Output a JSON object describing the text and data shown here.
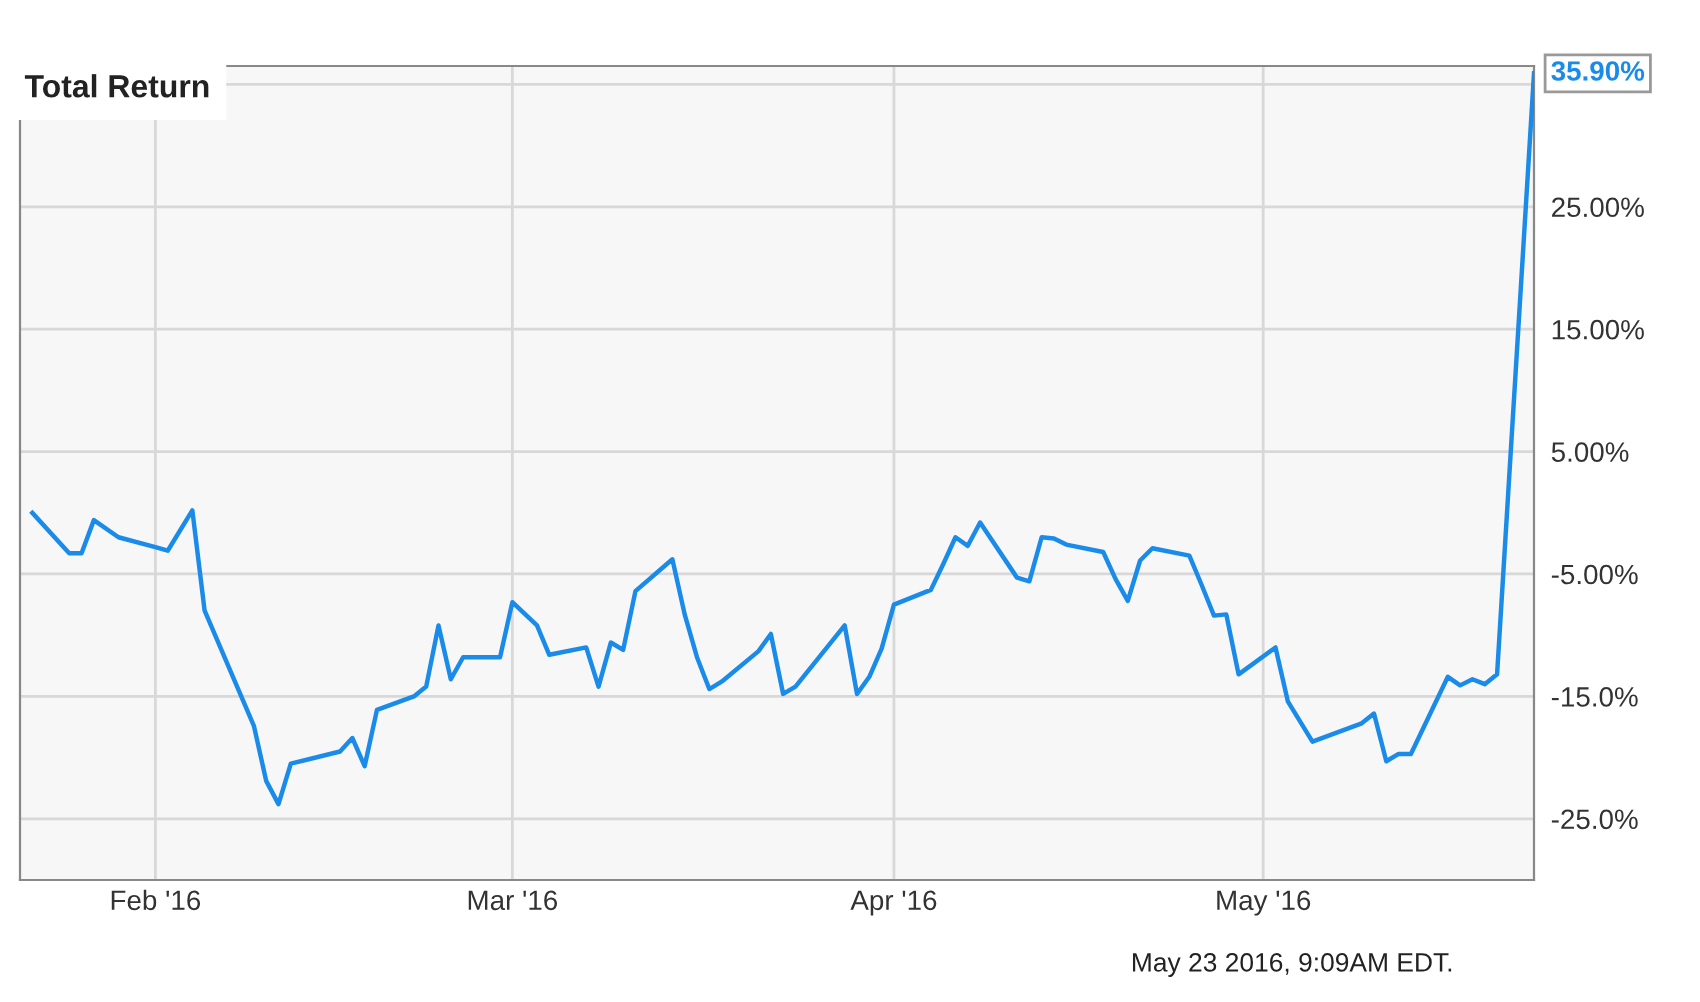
{
  "chart_data": {
    "type": "line",
    "title": "Total Return",
    "x": [
      "2016-01-22",
      "2016-01-25",
      "2016-01-26",
      "2016-01-27",
      "2016-01-29",
      "2016-02-01",
      "2016-02-02",
      "2016-02-04",
      "2016-02-05",
      "2016-02-09",
      "2016-02-10",
      "2016-02-11",
      "2016-02-12",
      "2016-02-16",
      "2016-02-17",
      "2016-02-18",
      "2016-02-19",
      "2016-02-22",
      "2016-02-23",
      "2016-02-24",
      "2016-02-25",
      "2016-02-26",
      "2016-02-29",
      "2016-03-01",
      "2016-03-03",
      "2016-03-04",
      "2016-03-07",
      "2016-03-08",
      "2016-03-09",
      "2016-03-10",
      "2016-03-11",
      "2016-03-14",
      "2016-03-15",
      "2016-03-16",
      "2016-03-17",
      "2016-03-18",
      "2016-03-21",
      "2016-03-22",
      "2016-03-23",
      "2016-03-24",
      "2016-03-28",
      "2016-03-29",
      "2016-03-30",
      "2016-03-31",
      "2016-04-01",
      "2016-04-04",
      "2016-04-05",
      "2016-04-06",
      "2016-04-07",
      "2016-04-08",
      "2016-04-11",
      "2016-04-12",
      "2016-04-13",
      "2016-04-14",
      "2016-04-15",
      "2016-04-18",
      "2016-04-19",
      "2016-04-20",
      "2016-04-21",
      "2016-04-22",
      "2016-04-25",
      "2016-04-26",
      "2016-04-27",
      "2016-04-28",
      "2016-04-29",
      "2016-05-02",
      "2016-05-03",
      "2016-05-05",
      "2016-05-09",
      "2016-05-10",
      "2016-05-11",
      "2016-05-12",
      "2016-05-13",
      "2016-05-16",
      "2016-05-17",
      "2016-05-18",
      "2016-05-19",
      "2016-05-20",
      "2016-05-23"
    ],
    "series": [
      {
        "color": "#1a8be8",
        "values": [
          0.0,
          -3.3,
          -3.3,
          -0.6,
          -2.0,
          -2.8,
          -3.1,
          0.2,
          -8.0,
          -17.4,
          -21.9,
          -23.8,
          -20.5,
          -19.5,
          -18.4,
          -20.7,
          -16.1,
          -15.0,
          -14.2,
          -9.2,
          -13.6,
          -11.8,
          -11.8,
          -7.3,
          -9.2,
          -11.6,
          -11.0,
          -14.2,
          -10.6,
          -11.2,
          -6.4,
          -3.8,
          -8.3,
          -11.8,
          -14.4,
          -13.8,
          -11.3,
          -9.9,
          -14.8,
          -14.2,
          -9.2,
          -14.8,
          -13.4,
          -11.1,
          -7.5,
          -6.3,
          -4.2,
          -2.0,
          -2.7,
          -0.8,
          -5.3,
          -5.6,
          -2.0,
          -2.1,
          -2.6,
          -3.2,
          -5.4,
          -7.2,
          -3.9,
          -2.9,
          -3.5,
          -5.9,
          -8.4,
          -8.3,
          -13.2,
          -11.0,
          -15.4,
          -18.7,
          -17.2,
          -16.4,
          -20.3,
          -19.7,
          -19.7,
          -13.4,
          -14.1,
          -13.6,
          -14.0,
          -13.2,
          35.9
        ]
      }
    ],
    "xlim": [
      "2016-01-21",
      "2016-05-23"
    ],
    "xticks": [
      {
        "value": "2016-02-01",
        "label": "Feb '16"
      },
      {
        "value": "2016-03-01",
        "label": "Mar '16"
      },
      {
        "value": "2016-04-01",
        "label": "Apr '16"
      },
      {
        "value": "2016-05-01",
        "label": "May '16"
      }
    ],
    "ylim": [
      -30,
      36.5
    ],
    "yticks": [
      {
        "value": -25,
        "label": "-25.0%"
      },
      {
        "value": -15,
        "label": "-15.0%"
      },
      {
        "value": -5,
        "label": "-5.00%"
      },
      {
        "value": 5,
        "label": "5.00%"
      },
      {
        "value": 15,
        "label": "15.00%"
      },
      {
        "value": 25,
        "label": "25.00%"
      },
      {
        "value": 35,
        "label": null
      }
    ],
    "grid": true,
    "annotations": [
      {
        "text": "35.90%",
        "x": "2016-05-23",
        "y": 35.9
      },
      "May 23 2016, 9:09AM EDT."
    ]
  }
}
